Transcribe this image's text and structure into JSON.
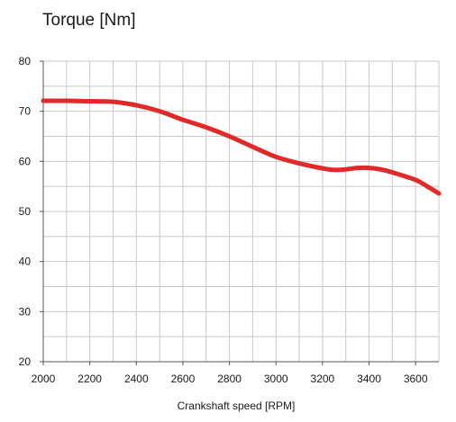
{
  "chart_data": {
    "type": "line",
    "title": "Torque [Nm]",
    "xlabel": "Crankshaft speed [RPM]",
    "ylabel": "",
    "xlim": [
      2000,
      3700
    ],
    "ylim": [
      20,
      80
    ],
    "x_ticks": [
      2000,
      2200,
      2400,
      2600,
      2800,
      3000,
      3200,
      3400,
      3600
    ],
    "y_ticks": [
      20,
      30,
      40,
      50,
      60,
      70,
      80
    ],
    "x_grid_step": 100,
    "y_grid_step": 5,
    "grid": true,
    "series": [
      {
        "color": "#e02a2a",
        "x": [
          2000,
          2100,
          2200,
          2300,
          2400,
          2500,
          2600,
          2700,
          2800,
          2900,
          3000,
          3100,
          3200,
          3250,
          3300,
          3350,
          3400,
          3450,
          3500,
          3600,
          3650,
          3700
        ],
        "y": [
          72.1,
          72.1,
          72.0,
          71.9,
          71.2,
          70.0,
          68.3,
          66.8,
          65.0,
          62.9,
          60.9,
          59.6,
          58.6,
          58.3,
          58.4,
          58.7,
          58.7,
          58.4,
          57.8,
          56.3,
          55.0,
          53.6
        ]
      }
    ]
  }
}
